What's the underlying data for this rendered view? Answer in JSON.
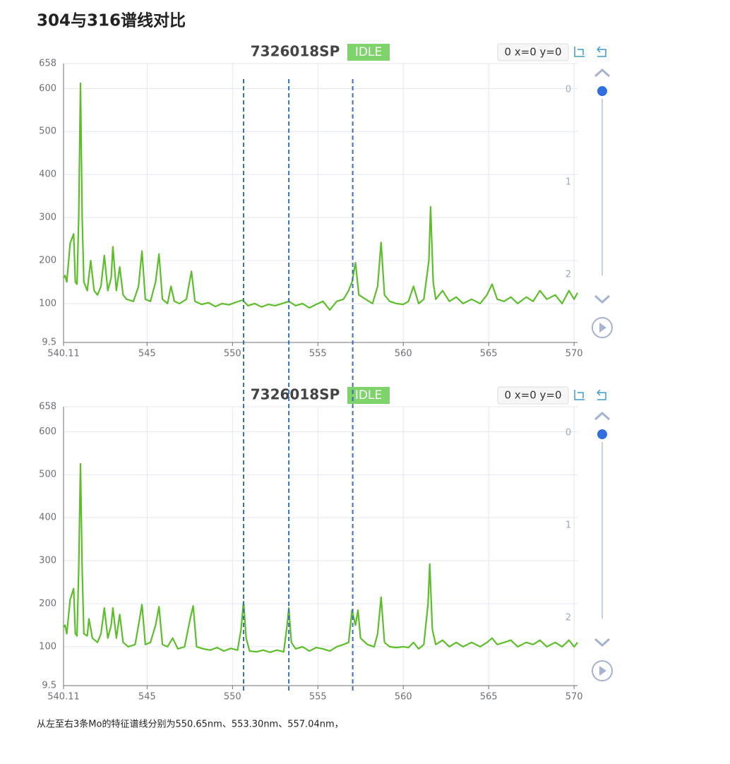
{
  "title": "304与316谱线对比",
  "caption": "从左至右3条Mo的特征谱线分别为550.65nm、553.30nm、557.04nm，",
  "reference_lines": [
    550.65,
    553.3,
    557.04
  ],
  "chart_data": [
    {
      "type": "line",
      "title": "7326018SP",
      "status": "IDLE",
      "coords": "0 x=0 y=0",
      "color": "#5cbf2a",
      "grid": true,
      "xlim": [
        540.11,
        570.2
      ],
      "xticks": [
        540.11,
        545,
        550,
        555,
        560,
        565,
        570
      ],
      "ylim": [
        9.5,
        658
      ],
      "yticks": [
        9.5,
        100,
        200,
        300,
        400,
        500,
        600,
        658
      ],
      "slider_labels": [
        0,
        1,
        2
      ],
      "x": [
        540.11,
        540.2,
        540.3,
        540.5,
        540.7,
        540.8,
        540.9,
        541.0,
        541.1,
        541.2,
        541.3,
        541.5,
        541.7,
        541.9,
        542.1,
        542.3,
        542.5,
        542.7,
        542.9,
        543.0,
        543.2,
        543.4,
        543.6,
        543.8,
        544.2,
        544.5,
        544.7,
        544.9,
        545.2,
        545.5,
        545.7,
        545.9,
        546.2,
        546.4,
        546.6,
        546.9,
        547.3,
        547.6,
        547.8,
        548.2,
        548.6,
        549.0,
        549.4,
        549.8,
        550.2,
        550.6,
        550.9,
        551.3,
        551.7,
        552.1,
        552.5,
        552.9,
        553.3,
        553.7,
        554.1,
        554.5,
        554.9,
        555.3,
        555.7,
        556.1,
        556.5,
        556.8,
        557.0,
        557.2,
        557.4,
        557.8,
        558.2,
        558.5,
        558.7,
        558.9,
        559.2,
        559.6,
        560.0,
        560.3,
        560.6,
        560.9,
        561.2,
        561.5,
        561.6,
        561.75,
        561.9,
        562.3,
        562.7,
        563.1,
        563.5,
        564.0,
        564.5,
        564.9,
        565.2,
        565.5,
        565.9,
        566.3,
        566.7,
        567.2,
        567.6,
        568.0,
        568.4,
        568.9,
        569.3,
        569.7,
        570.0,
        570.2
      ],
      "values": [
        160,
        165,
        150,
        240,
        262,
        150,
        145,
        300,
        612,
        300,
        150,
        130,
        200,
        130,
        120,
        140,
        212,
        130,
        160,
        232,
        130,
        185,
        120,
        110,
        105,
        140,
        222,
        110,
        105,
        150,
        215,
        110,
        100,
        140,
        105,
        100,
        110,
        175,
        105,
        98,
        102,
        93,
        100,
        97,
        103,
        108,
        95,
        100,
        92,
        98,
        95,
        100,
        105,
        95,
        100,
        90,
        98,
        105,
        85,
        105,
        110,
        130,
        150,
        195,
        120,
        110,
        100,
        140,
        242,
        120,
        105,
        100,
        98,
        105,
        140,
        100,
        110,
        200,
        325,
        150,
        110,
        130,
        105,
        115,
        100,
        110,
        100,
        120,
        145,
        110,
        105,
        115,
        100,
        115,
        105,
        130,
        110,
        120,
        100,
        130,
        110,
        125
      ]
    },
    {
      "type": "line",
      "title": "7326018SP",
      "status": "IDLE",
      "coords": "0 x=0 y=0",
      "color": "#5cbf2a",
      "grid": true,
      "xlim": [
        540.11,
        570.2
      ],
      "xticks": [
        540.11,
        545,
        550,
        555,
        560,
        565,
        570
      ],
      "ylim": [
        9.5,
        658
      ],
      "yticks": [
        9.5,
        100,
        200,
        300,
        400,
        500,
        600,
        658
      ],
      "slider_labels": [
        0,
        1,
        2
      ],
      "x": [
        540.11,
        540.2,
        540.3,
        540.5,
        540.7,
        540.8,
        540.9,
        541.0,
        541.1,
        541.2,
        541.3,
        541.5,
        541.6,
        541.8,
        542.1,
        542.3,
        542.5,
        542.7,
        542.9,
        543.0,
        543.2,
        543.4,
        543.6,
        543.9,
        544.3,
        544.5,
        544.7,
        544.9,
        545.2,
        545.5,
        545.7,
        545.9,
        546.2,
        546.5,
        546.8,
        547.2,
        547.5,
        547.7,
        547.9,
        548.3,
        548.7,
        549.1,
        549.5,
        549.9,
        550.3,
        550.5,
        550.65,
        550.8,
        551.0,
        551.4,
        551.8,
        552.2,
        552.6,
        553.0,
        553.2,
        553.3,
        553.45,
        553.7,
        554.1,
        554.5,
        554.9,
        555.3,
        555.7,
        556.1,
        556.5,
        556.8,
        557.0,
        557.2,
        557.35,
        557.5,
        557.9,
        558.3,
        558.5,
        558.7,
        558.9,
        559.2,
        559.6,
        560.0,
        560.3,
        560.6,
        560.9,
        561.2,
        561.45,
        561.55,
        561.7,
        561.9,
        562.3,
        562.7,
        563.1,
        563.5,
        564.0,
        564.5,
        564.9,
        565.2,
        565.5,
        565.9,
        566.3,
        566.7,
        567.2,
        567.6,
        568.0,
        568.4,
        568.9,
        569.3,
        569.7,
        570.0,
        570.2
      ],
      "values": [
        145,
        150,
        130,
        210,
        235,
        130,
        125,
        280,
        525,
        280,
        130,
        125,
        165,
        120,
        110,
        130,
        190,
        120,
        150,
        190,
        120,
        175,
        110,
        100,
        105,
        150,
        198,
        105,
        110,
        150,
        193,
        105,
        100,
        120,
        95,
        100,
        160,
        195,
        100,
        95,
        92,
        98,
        90,
        96,
        92,
        140,
        205,
        120,
        90,
        88,
        92,
        87,
        92,
        88,
        150,
        190,
        110,
        95,
        100,
        90,
        98,
        95,
        90,
        100,
        105,
        110,
        185,
        150,
        185,
        120,
        105,
        100,
        130,
        215,
        110,
        100,
        98,
        100,
        98,
        110,
        95,
        105,
        200,
        292,
        140,
        105,
        115,
        100,
        110,
        100,
        110,
        100,
        110,
        120,
        105,
        110,
        115,
        100,
        110,
        105,
        115,
        100,
        110,
        100,
        115,
        100,
        110
      ]
    }
  ]
}
